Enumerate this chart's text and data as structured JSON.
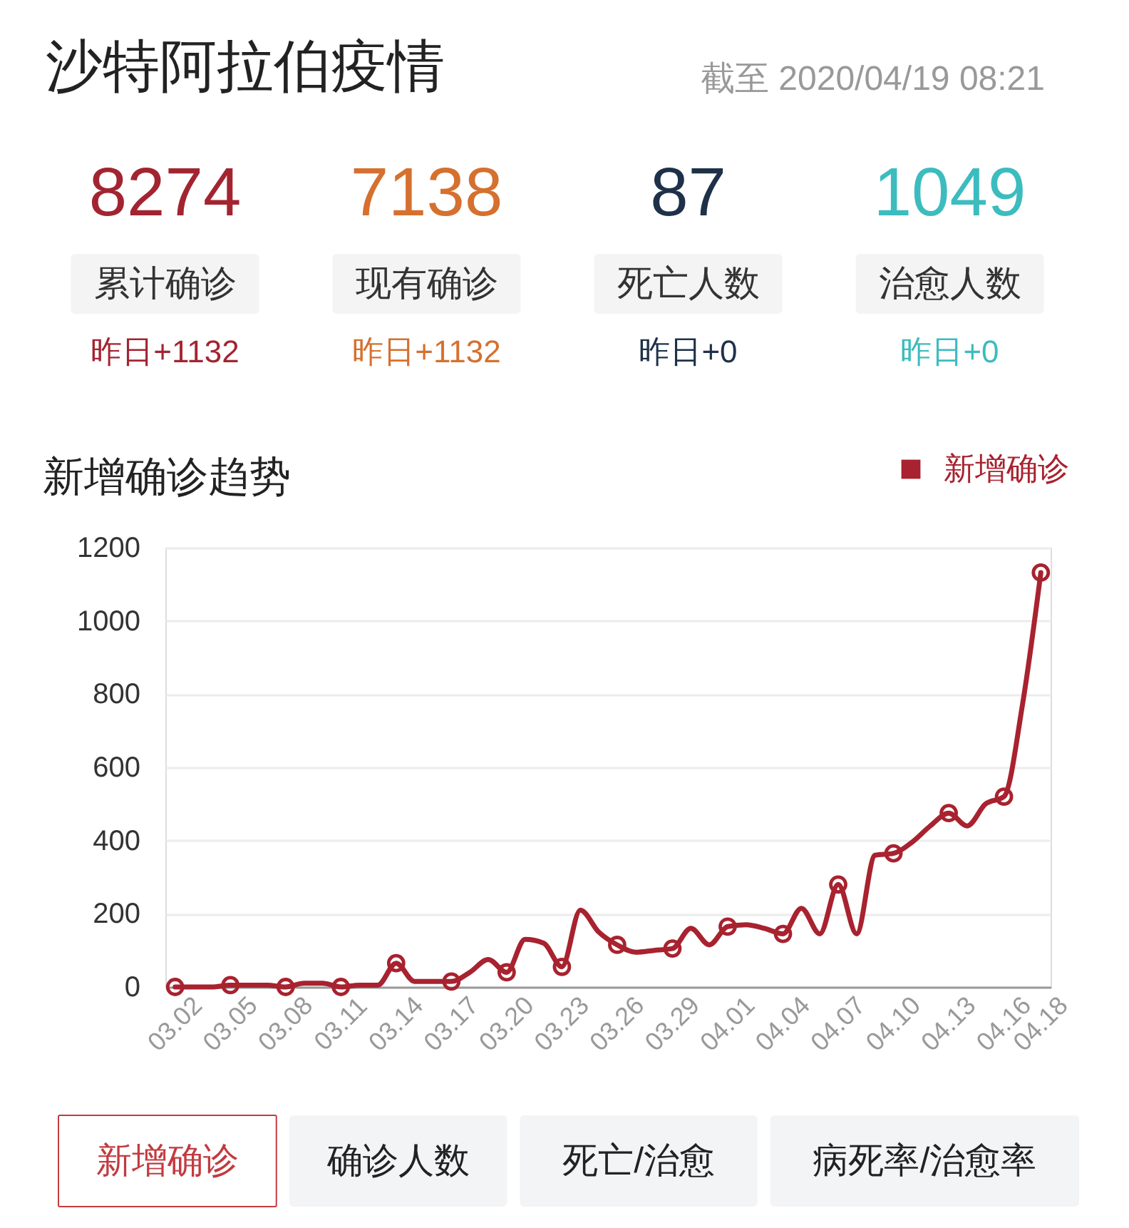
{
  "chart_data": [
    {
      "type": "other",
      "title": "沙特阿拉伯疫情",
      "subtitle": "截至 2020/04/19 08:21",
      "values": [
        8274,
        7138,
        87,
        1049
      ],
      "colors": [
        "#a32431",
        "#d5702f",
        "#1e3148",
        "#3cbcbf"
      ],
      "data_labels": true,
      "annotations": [
        "累计确诊",
        "现有确诊",
        "死亡人数",
        "治愈人数",
        "昨日+1132",
        "昨日+1132",
        "昨日+0",
        "昨日+0"
      ]
    },
    {
      "type": "line",
      "title": "新增确诊趋势",
      "categories": [
        "03.02",
        null,
        null,
        "03.05",
        null,
        null,
        "03.08",
        null,
        null,
        "03.11",
        null,
        null,
        "03.14",
        null,
        null,
        "03.17",
        null,
        null,
        "03.20",
        null,
        null,
        "03.23",
        null,
        null,
        "03.26",
        null,
        null,
        "03.29",
        null,
        null,
        "04.01",
        null,
        null,
        "04.04",
        null,
        null,
        "04.07",
        null,
        null,
        "04.10",
        null,
        null,
        "04.13",
        null,
        null,
        "04.16",
        null,
        "04.18"
      ],
      "series": [
        {
          "name": "新增确诊",
          "color": "#a8222f",
          "values": [
            0,
            0,
            0,
            5,
            5,
            5,
            0,
            10,
            10,
            0,
            5,
            5,
            65,
            15,
            15,
            15,
            40,
            75,
            40,
            130,
            120,
            55,
            210,
            150,
            115,
            95,
            100,
            105,
            160,
            115,
            165,
            170,
            160,
            145,
            215,
            145,
            280,
            145,
            360,
            365,
            395,
            440,
            475,
            440,
            500,
            520,
            770,
            1132
          ]
        },
        {
          "type": "scatter",
          "color": "#a8222f",
          "marker": "circle",
          "x": [
            "03.02",
            "03.05",
            "03.08",
            "03.11",
            "03.14",
            "03.17",
            "03.20",
            "03.23",
            "03.26",
            "03.29",
            "04.01",
            "04.04",
            "04.07",
            "04.10",
            "04.13",
            "04.16",
            "04.18"
          ],
          "values": [
            0,
            5,
            0,
            0,
            65,
            15,
            40,
            55,
            115,
            105,
            165,
            145,
            280,
            365,
            475,
            520,
            1132
          ]
        }
      ],
      "ylim": [
        0,
        1200
      ],
      "yticks": [
        0,
        200,
        400,
        600,
        800,
        1000,
        1200
      ],
      "grid": "y",
      "legend": "top right",
      "line_style": "solid"
    },
    {
      "type": "other",
      "categories": [
        "新增确诊",
        "确诊人数",
        "死亡/治愈",
        "病死率/治愈率"
      ],
      "colors": [
        "#ffffff",
        "#f3f4f6",
        "#f3f4f6",
        "#f3f4f6"
      ]
    }
  ]
}
